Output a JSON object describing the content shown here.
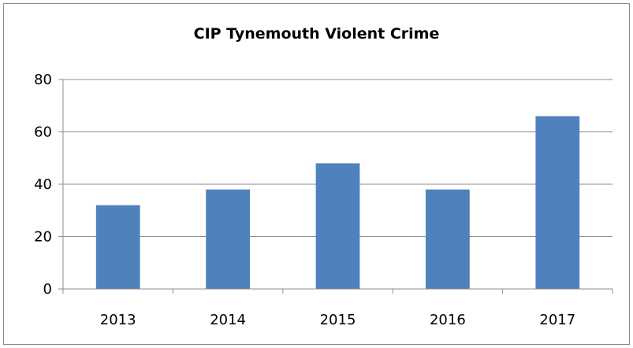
{
  "chart_data": {
    "type": "bar",
    "title": "CIP Tynemouth Violent Crime",
    "categories": [
      "2013",
      "2014",
      "2015",
      "2016",
      "2017"
    ],
    "values": [
      32,
      38,
      48,
      38,
      66
    ],
    "xlabel": "",
    "ylabel": "",
    "ylim": [
      0,
      80
    ],
    "yticks": [
      0,
      20,
      40,
      60,
      80
    ],
    "grid": true,
    "legend": "none",
    "bar_color": "#4f81bd",
    "grid_color": "#8c8c8c"
  }
}
